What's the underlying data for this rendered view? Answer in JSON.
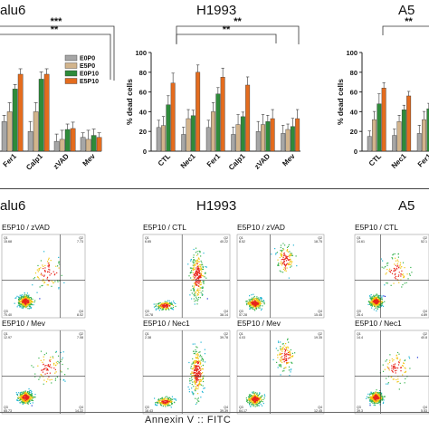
{
  "top_titles": [
    "alu6",
    "H1993",
    "A5"
  ],
  "bottom_titles": [
    "alu6",
    "H1993",
    "A5"
  ],
  "legend": [
    {
      "name": "E0P0",
      "color": "#a6a6a6"
    },
    {
      "name": "E5P0",
      "color": "#d2b48c"
    },
    {
      "name": "E0P10",
      "color": "#2e8b3a"
    },
    {
      "name": "E5P10",
      "color": "#e46c1e"
    }
  ],
  "significance": {
    "left": [
      "**",
      "***"
    ],
    "middle": [
      "**",
      "**"
    ],
    "right": [
      "**"
    ]
  },
  "chart_data": [
    {
      "type": "bar",
      "title": "alu6",
      "categories": [
        "Fer1",
        "Calp1",
        "zVAD",
        "Mev"
      ],
      "ylabel": "",
      "ylim": [
        0,
        100
      ],
      "series": [
        {
          "name": "E0P0",
          "values": [
            30,
            20,
            10,
            14
          ]
        },
        {
          "name": "E5P0",
          "values": [
            40,
            40,
            12,
            12
          ]
        },
        {
          "name": "E0P10",
          "values": [
            63,
            73,
            22,
            16
          ]
        },
        {
          "name": "E5P10",
          "values": [
            78,
            78,
            23,
            14
          ]
        }
      ]
    },
    {
      "type": "bar",
      "title": "H1993",
      "categories": [
        "CTL",
        "Nec1",
        "Fer1",
        "Calp1",
        "zVAD",
        "Mev"
      ],
      "ylabel": "% dead cells",
      "yticks": [
        0,
        20,
        40,
        60,
        80,
        100
      ],
      "ylim": [
        0,
        100
      ],
      "series": [
        {
          "name": "E0P0",
          "values": [
            24,
            17,
            24,
            17,
            20,
            18
          ]
        },
        {
          "name": "E5P0",
          "values": [
            26,
            33,
            40,
            27,
            27,
            22
          ]
        },
        {
          "name": "E0P10",
          "values": [
            47,
            36,
            58,
            35,
            30,
            25
          ]
        },
        {
          "name": "E5P10",
          "values": [
            69,
            80,
            75,
            67,
            33,
            33
          ]
        }
      ]
    },
    {
      "type": "bar",
      "title": "A5",
      "categories": [
        "CTL",
        "Nec1",
        "Fer1"
      ],
      "ylabel": "% dead cells",
      "yticks": [
        0,
        20,
        40,
        60,
        80,
        100
      ],
      "ylim": [
        0,
        100
      ],
      "series": [
        {
          "name": "E0P0",
          "values": [
            15,
            16,
            18
          ]
        },
        {
          "name": "E5P0",
          "values": [
            32,
            30,
            32
          ]
        },
        {
          "name": "E0P10",
          "values": [
            48,
            42,
            43
          ]
        },
        {
          "name": "E5P10",
          "values": [
            64,
            56,
            48
          ]
        }
      ]
    }
  ],
  "flow_labels": [
    "E5P10 / zVAD",
    "E5P10 / CTL",
    "E5P10 / zVAD",
    "E5P10 / CTL",
    "E5P10 / Mev",
    "E5P10 / Nec1",
    "E5P10 / Mev",
    "E5P10 / Nec1"
  ],
  "flow_quadrants": [
    {
      "q1": "Q1",
      "q1v": "15.68",
      "q2": "Q2",
      "q2v": "7.73",
      "q3": "Q3",
      "q3v": "70.40",
      "q4": "Q4",
      "q4v": "8.02"
    },
    {
      "q1": "Q1",
      "q1v": "6.85",
      "q2": "Q2",
      "q2v": "40.22",
      "q3": "Q3",
      "q3v": "14.78",
      "q4": "Q4",
      "q4v": "38.14"
    },
    {
      "q1": "Q1",
      "q1v": "8.52",
      "q2": "Q2",
      "q2v": "18.75",
      "q3": "Q3",
      "q3v": "57.28",
      "q4": "Q4",
      "q4v": "15.45"
    },
    {
      "q1": "Q1",
      "q1v": "14.61",
      "q2": "Q2",
      "q2v": "52.1",
      "q3": "Q3",
      "q3v": "28.4",
      "q4": "Q4",
      "q4v": "4.89"
    },
    {
      "q1": "Q1",
      "q1v": "12.97",
      "q2": "Q2",
      "q2v": "7.08",
      "q3": "Q3",
      "q3v": "65.73",
      "q4": "Q4",
      "q4v": "14.22"
    },
    {
      "q1": "Q1",
      "q1v": "2.38",
      "q2": "Q2",
      "q2v": "39.78",
      "q3": "Q3",
      "q3v": "18.43",
      "q4": "Q4",
      "q4v": "39.39"
    },
    {
      "q1": "Q1",
      "q1v": "4.03",
      "q2": "Q2",
      "q2v": "19.35",
      "q3": "Q3",
      "q3v": "64.17",
      "q4": "Q4",
      "q4v": "12.45"
    },
    {
      "q1": "Q1",
      "q1v": "14.4",
      "q2": "Q2",
      "q2v": "40.8",
      "q3": "Q3",
      "q3v": "39.3",
      "q4": "Q4",
      "q4v": "5.53"
    }
  ],
  "bottom_axis_label": "Annexin V :: FITC"
}
